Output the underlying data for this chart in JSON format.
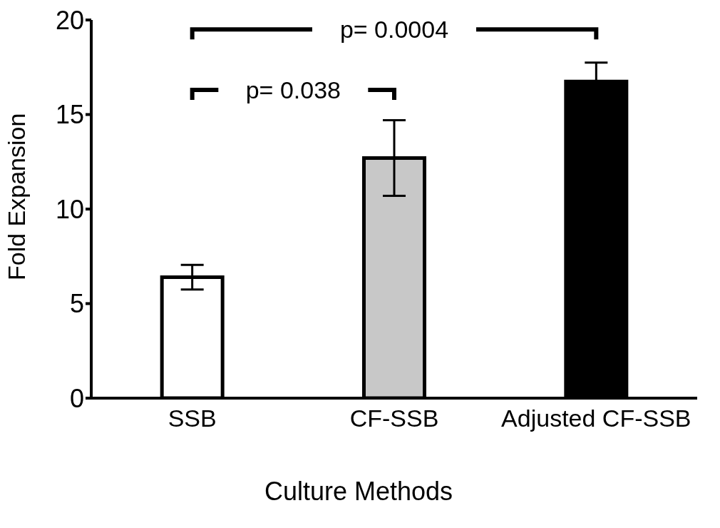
{
  "chart_data": {
    "type": "bar",
    "categories": [
      "SSB",
      "CF-SSB",
      "Adjusted CF-SSB"
    ],
    "values": [
      6.4,
      12.7,
      16.75
    ],
    "colors": [
      "#ffffff",
      "#c8c8c8",
      "#000000"
    ],
    "errors": [
      0.65,
      2.0,
      1.0
    ],
    "xlabel": "Culture Methods",
    "ylabel": "Fold Expansion",
    "ylim": [
      0,
      20
    ],
    "yticks": [
      0,
      5,
      10,
      15,
      20
    ],
    "annotations": [
      "p= 0.038",
      "p= 0.0004"
    ]
  }
}
